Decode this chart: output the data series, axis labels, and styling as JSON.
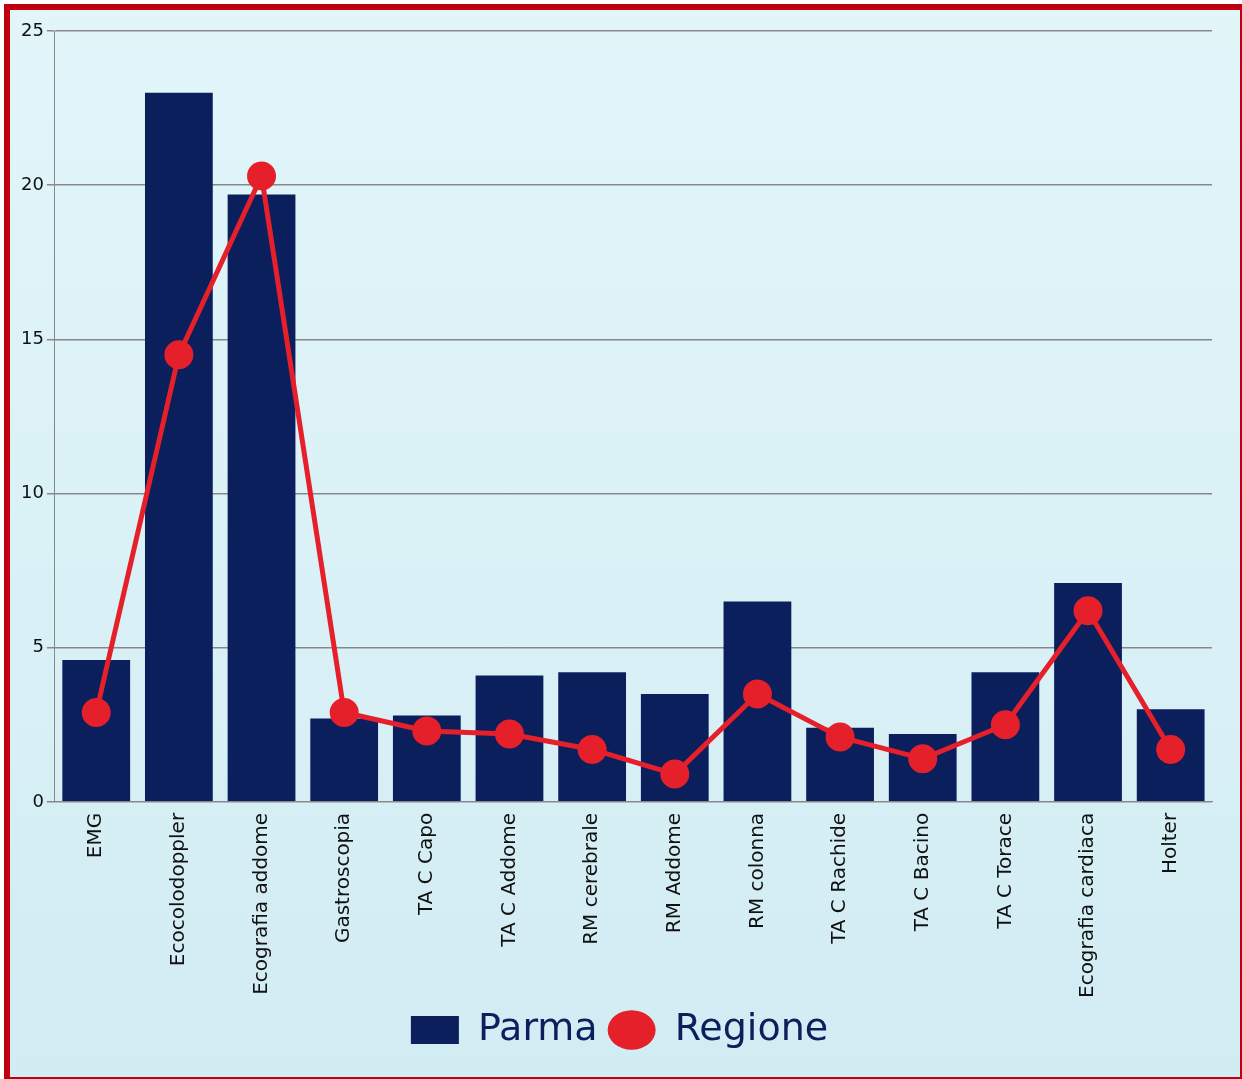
{
  "chart_data": {
    "type": "bar",
    "categories": [
      "EMG",
      "Ecocolodoppler",
      "Ecografia addome",
      "Gastroscopia",
      "TA C Capo",
      "TA C Addome",
      "RM cerebrale",
      "RM Addome",
      "RM colonna",
      "TA C Rachide",
      "TA C Bacino",
      "TA C Torace",
      "Ecografia cardiaca",
      "Holter"
    ],
    "series": [
      {
        "name": "Parma",
        "color": "#0a1f5c",
        "values": [
          4.6,
          23.0,
          19.7,
          2.7,
          2.8,
          4.1,
          4.2,
          3.5,
          6.5,
          2.4,
          2.2,
          4.2,
          7.1,
          3.0
        ]
      },
      {
        "name": "Regione",
        "type": "line",
        "color": "#e5202a",
        "values": [
          2.9,
          14.5,
          20.3,
          2.9,
          2.3,
          2.2,
          1.7,
          0.9,
          3.5,
          2.1,
          1.4,
          2.5,
          6.2,
          1.7
        ]
      }
    ],
    "ylim": [
      0,
      25
    ],
    "yticks": [
      0,
      5,
      10,
      15,
      20,
      25
    ],
    "grid": "y",
    "legend": "bottom",
    "marker": "circle",
    "line_style": "solid"
  }
}
